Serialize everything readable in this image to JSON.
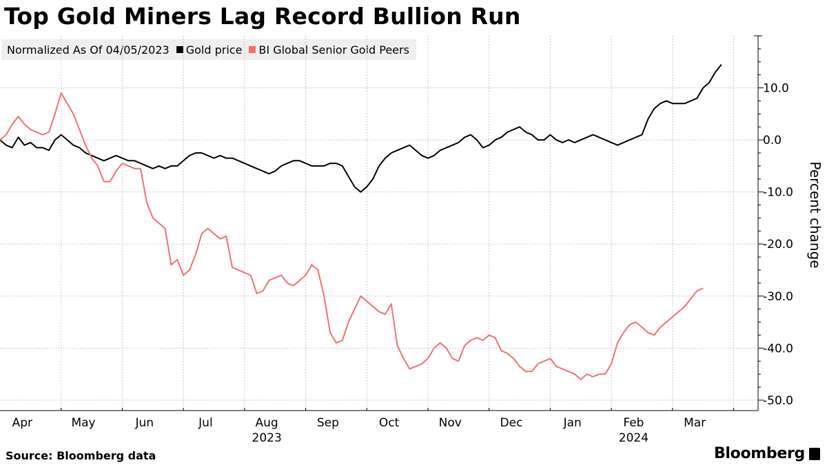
{
  "header": {
    "title": "Top Gold Miners Lag Record Bullion Run"
  },
  "legend": {
    "note": "Normalized As Of 04/05/2023",
    "items": [
      {
        "label": "Gold price",
        "color": "#000000"
      },
      {
        "label": "BI Global Senior Gold Peers",
        "color": "#f07070"
      }
    ]
  },
  "footer": {
    "source": "Source: Bloomberg data",
    "brand": "Bloomberg"
  },
  "chart_data": {
    "type": "line",
    "title": "Top Gold Miners Lag Record Bullion Run",
    "ylabel": "Percent change",
    "xlabel": "",
    "ylim": [
      -52,
      20
    ],
    "yticks": [
      10,
      0,
      -10,
      -20,
      -30,
      -40,
      -50
    ],
    "ytick_labels": [
      "10.0",
      "0.0",
      "-10.0",
      "-20.0",
      "-30.0",
      "-40.0",
      "-50.0"
    ],
    "x_range": [
      0,
      12.4
    ],
    "months": [
      {
        "label": "Apr",
        "x": 0.15
      },
      {
        "label": "May",
        "x": 1.15
      },
      {
        "label": "Jun",
        "x": 2.15
      },
      {
        "label": "Jul",
        "x": 3.15
      },
      {
        "label": "Aug",
        "x": 4.15
      },
      {
        "label": "Sep",
        "x": 5.15
      },
      {
        "label": "Oct",
        "x": 6.15
      },
      {
        "label": "Nov",
        "x": 7.15
      },
      {
        "label": "Dec",
        "x": 8.15
      },
      {
        "label": "Jan",
        "x": 9.15
      },
      {
        "label": "Feb",
        "x": 10.15
      },
      {
        "label": "Mar",
        "x": 11.15
      }
    ],
    "month_boundaries": [
      1,
      2,
      3,
      4,
      5,
      6,
      7,
      8,
      9,
      10,
      11,
      12
    ],
    "years": [
      {
        "label": "2023",
        "x": 4.15
      },
      {
        "label": "2024",
        "x": 10.15
      }
    ],
    "grid": true,
    "series": [
      {
        "name": "Gold price",
        "color": "#000000",
        "points": [
          [
            0.0,
            0
          ],
          [
            0.1,
            -1
          ],
          [
            0.2,
            -1.5
          ],
          [
            0.3,
            0.5
          ],
          [
            0.4,
            -1
          ],
          [
            0.5,
            -0.5
          ],
          [
            0.6,
            -1.5
          ],
          [
            0.7,
            -1.5
          ],
          [
            0.8,
            -2
          ],
          [
            0.9,
            0
          ],
          [
            1.0,
            1
          ],
          [
            1.1,
            0
          ],
          [
            1.2,
            -1
          ],
          [
            1.3,
            -1.5
          ],
          [
            1.4,
            -2.5
          ],
          [
            1.5,
            -3
          ],
          [
            1.6,
            -3.5
          ],
          [
            1.7,
            -4
          ],
          [
            1.8,
            -3.5
          ],
          [
            1.9,
            -3
          ],
          [
            2.0,
            -3.5
          ],
          [
            2.1,
            -4
          ],
          [
            2.2,
            -4
          ],
          [
            2.3,
            -4.5
          ],
          [
            2.4,
            -5
          ],
          [
            2.5,
            -5.5
          ],
          [
            2.6,
            -5
          ],
          [
            2.7,
            -5.5
          ],
          [
            2.8,
            -5
          ],
          [
            2.9,
            -5
          ],
          [
            3.0,
            -4
          ],
          [
            3.1,
            -3
          ],
          [
            3.2,
            -2.5
          ],
          [
            3.3,
            -2.5
          ],
          [
            3.4,
            -3
          ],
          [
            3.5,
            -3.5
          ],
          [
            3.6,
            -3
          ],
          [
            3.7,
            -3.5
          ],
          [
            3.8,
            -3.5
          ],
          [
            3.9,
            -4
          ],
          [
            4.0,
            -4.5
          ],
          [
            4.1,
            -5
          ],
          [
            4.2,
            -5.5
          ],
          [
            4.3,
            -6
          ],
          [
            4.4,
            -6.5
          ],
          [
            4.5,
            -6
          ],
          [
            4.6,
            -5
          ],
          [
            4.7,
            -4.5
          ],
          [
            4.8,
            -4
          ],
          [
            4.9,
            -4
          ],
          [
            5.0,
            -4.5
          ],
          [
            5.1,
            -5
          ],
          [
            5.2,
            -5
          ],
          [
            5.3,
            -5
          ],
          [
            5.4,
            -4.5
          ],
          [
            5.5,
            -4.5
          ],
          [
            5.6,
            -5
          ],
          [
            5.7,
            -7
          ],
          [
            5.8,
            -9
          ],
          [
            5.9,
            -10
          ],
          [
            6.0,
            -9
          ],
          [
            6.1,
            -7.5
          ],
          [
            6.2,
            -5
          ],
          [
            6.3,
            -3.5
          ],
          [
            6.4,
            -2.5
          ],
          [
            6.5,
            -2
          ],
          [
            6.6,
            -1.5
          ],
          [
            6.7,
            -1
          ],
          [
            6.8,
            -2
          ],
          [
            6.9,
            -3
          ],
          [
            7.0,
            -3.5
          ],
          [
            7.1,
            -3
          ],
          [
            7.2,
            -2
          ],
          [
            7.3,
            -1.5
          ],
          [
            7.4,
            -1
          ],
          [
            7.5,
            -0.5
          ],
          [
            7.6,
            0.5
          ],
          [
            7.7,
            1
          ],
          [
            7.8,
            0
          ],
          [
            7.9,
            -1.5
          ],
          [
            8.0,
            -1
          ],
          [
            8.1,
            0
          ],
          [
            8.2,
            0.5
          ],
          [
            8.3,
            1.5
          ],
          [
            8.4,
            2
          ],
          [
            8.5,
            2.5
          ],
          [
            8.6,
            1.5
          ],
          [
            8.7,
            1
          ],
          [
            8.8,
            0
          ],
          [
            8.9,
            0
          ],
          [
            9.0,
            1
          ],
          [
            9.1,
            0
          ],
          [
            9.2,
            -0.5
          ],
          [
            9.3,
            0
          ],
          [
            9.4,
            -0.5
          ],
          [
            9.5,
            0
          ],
          [
            9.6,
            0.5
          ],
          [
            9.7,
            1
          ],
          [
            9.8,
            0.5
          ],
          [
            9.9,
            0
          ],
          [
            10.0,
            -0.5
          ],
          [
            10.1,
            -1
          ],
          [
            10.2,
            -0.5
          ],
          [
            10.3,
            0
          ],
          [
            10.4,
            0.5
          ],
          [
            10.5,
            1
          ],
          [
            10.6,
            4
          ],
          [
            10.7,
            6
          ],
          [
            10.8,
            7
          ],
          [
            10.9,
            7.5
          ],
          [
            11.0,
            7
          ],
          [
            11.1,
            7
          ],
          [
            11.2,
            7
          ],
          [
            11.3,
            7.5
          ],
          [
            11.4,
            8
          ],
          [
            11.5,
            10
          ],
          [
            11.6,
            11
          ],
          [
            11.7,
            13
          ],
          [
            11.8,
            14.5
          ]
        ]
      },
      {
        "name": "BI Global Senior Gold Peers",
        "color": "#f07070",
        "points": [
          [
            0.0,
            0
          ],
          [
            0.1,
            1
          ],
          [
            0.2,
            3
          ],
          [
            0.3,
            4.5
          ],
          [
            0.4,
            3
          ],
          [
            0.5,
            2
          ],
          [
            0.6,
            1.5
          ],
          [
            0.7,
            1
          ],
          [
            0.8,
            1.5
          ],
          [
            0.9,
            5
          ],
          [
            1.0,
            9
          ],
          [
            1.1,
            7
          ],
          [
            1.2,
            5
          ],
          [
            1.3,
            2
          ],
          [
            1.4,
            -1
          ],
          [
            1.5,
            -3.5
          ],
          [
            1.6,
            -5
          ],
          [
            1.7,
            -8
          ],
          [
            1.8,
            -8
          ],
          [
            1.9,
            -6
          ],
          [
            2.0,
            -4.5
          ],
          [
            2.1,
            -5
          ],
          [
            2.2,
            -5.5
          ],
          [
            2.3,
            -5.5
          ],
          [
            2.4,
            -12
          ],
          [
            2.5,
            -15
          ],
          [
            2.6,
            -16
          ],
          [
            2.7,
            -17
          ],
          [
            2.8,
            -24
          ],
          [
            2.9,
            -23
          ],
          [
            3.0,
            -26
          ],
          [
            3.1,
            -25
          ],
          [
            3.2,
            -22
          ],
          [
            3.3,
            -18
          ],
          [
            3.4,
            -17
          ],
          [
            3.5,
            -18
          ],
          [
            3.6,
            -19
          ],
          [
            3.7,
            -18.5
          ],
          [
            3.8,
            -24.5
          ],
          [
            3.9,
            -25
          ],
          [
            4.0,
            -25.5
          ],
          [
            4.1,
            -26
          ],
          [
            4.2,
            -29.5
          ],
          [
            4.3,
            -29
          ],
          [
            4.4,
            -27
          ],
          [
            4.5,
            -26.5
          ],
          [
            4.6,
            -26
          ],
          [
            4.7,
            -27.5
          ],
          [
            4.8,
            -28
          ],
          [
            4.9,
            -27
          ],
          [
            5.0,
            -26
          ],
          [
            5.1,
            -24
          ],
          [
            5.2,
            -25
          ],
          [
            5.3,
            -30
          ],
          [
            5.4,
            -37
          ],
          [
            5.5,
            -39
          ],
          [
            5.6,
            -38.5
          ],
          [
            5.7,
            -35
          ],
          [
            5.8,
            -32.5
          ],
          [
            5.9,
            -30
          ],
          [
            6.0,
            -31
          ],
          [
            6.1,
            -32
          ],
          [
            6.2,
            -33
          ],
          [
            6.3,
            -33.5
          ],
          [
            6.4,
            -31.5
          ],
          [
            6.5,
            -39.5
          ],
          [
            6.6,
            -42
          ],
          [
            6.7,
            -44
          ],
          [
            6.8,
            -43.5
          ],
          [
            6.9,
            -43
          ],
          [
            7.0,
            -42
          ],
          [
            7.1,
            -40
          ],
          [
            7.2,
            -39
          ],
          [
            7.3,
            -40
          ],
          [
            7.4,
            -42
          ],
          [
            7.5,
            -42.5
          ],
          [
            7.6,
            -39.5
          ],
          [
            7.7,
            -38.5
          ],
          [
            7.8,
            -38
          ],
          [
            7.9,
            -38.5
          ],
          [
            8.0,
            -37.5
          ],
          [
            8.1,
            -38
          ],
          [
            8.2,
            -40.5
          ],
          [
            8.3,
            -41
          ],
          [
            8.4,
            -42
          ],
          [
            8.5,
            -43.5
          ],
          [
            8.6,
            -44.5
          ],
          [
            8.7,
            -44.5
          ],
          [
            8.8,
            -43
          ],
          [
            8.9,
            -42.5
          ],
          [
            9.0,
            -42
          ],
          [
            9.1,
            -43.5
          ],
          [
            9.2,
            -44
          ],
          [
            9.3,
            -44.5
          ],
          [
            9.4,
            -45
          ],
          [
            9.5,
            -46
          ],
          [
            9.6,
            -45
          ],
          [
            9.7,
            -45.5
          ],
          [
            9.8,
            -45
          ],
          [
            9.9,
            -45
          ],
          [
            10.0,
            -43
          ],
          [
            10.1,
            -39
          ],
          [
            10.2,
            -37
          ],
          [
            10.3,
            -35.5
          ],
          [
            10.4,
            -35
          ],
          [
            10.5,
            -36
          ],
          [
            10.6,
            -37
          ],
          [
            10.7,
            -37.5
          ],
          [
            10.8,
            -36
          ],
          [
            10.9,
            -35
          ],
          [
            11.0,
            -34
          ],
          [
            11.1,
            -33
          ],
          [
            11.2,
            -32
          ],
          [
            11.3,
            -30.5
          ],
          [
            11.4,
            -29
          ],
          [
            11.5,
            -28.5
          ]
        ]
      }
    ]
  }
}
